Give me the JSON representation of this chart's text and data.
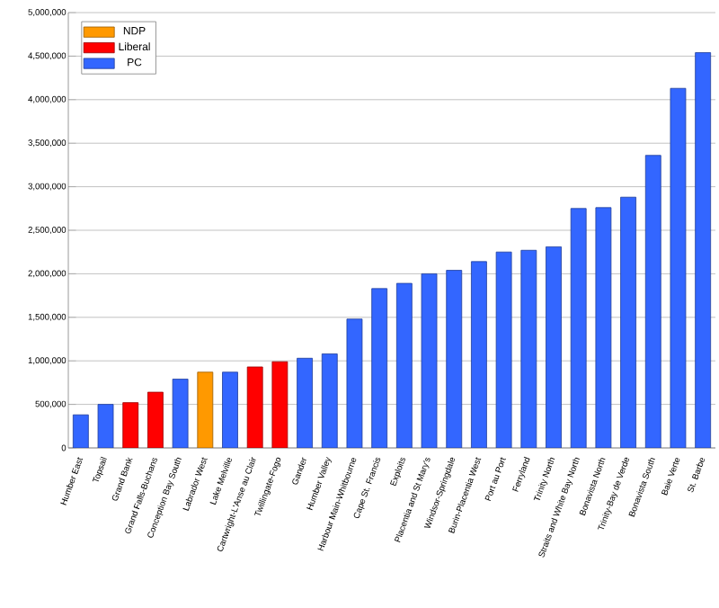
{
  "chart_data": {
    "type": "bar",
    "categories": [
      "Humber East",
      "Topsail",
      "Grand Bank",
      "Grand Falls-Buchans",
      "Conception Bay South",
      "Labrador West",
      "Lake Melville",
      "Cartwright-L'Anse au Clair",
      "Twillingate-Fogo",
      "Gander",
      "Humber Valley",
      "Harbour Main-Whitbourne",
      "Cape St. Francis",
      "Exploits",
      "Placentia and St Mary's",
      "Windsor-Springdale",
      "Burin-Placentia West",
      "Port au Port",
      "Ferryland",
      "Trinity North",
      "Straits and White Bay North",
      "Bonavista North",
      "Trinity-Bay de Verde",
      "Bonavista South",
      "Baie Verte",
      "St. Barbe"
    ],
    "series": [
      {
        "name": "NDP",
        "color": "#ff9900",
        "values": [
          null,
          null,
          null,
          null,
          null,
          870000,
          null,
          null,
          null,
          null,
          null,
          null,
          null,
          null,
          null,
          null,
          null,
          null,
          null,
          null,
          null,
          null,
          null,
          null,
          null,
          null
        ]
      },
      {
        "name": "Liberal",
        "color": "#ff0000",
        "values": [
          null,
          null,
          520000,
          640000,
          null,
          null,
          null,
          930000,
          990000,
          null,
          null,
          null,
          null,
          null,
          null,
          null,
          null,
          null,
          null,
          null,
          null,
          null,
          null,
          null,
          null,
          null
        ]
      },
      {
        "name": "PC",
        "color": "#3366ff",
        "values": [
          380000,
          500000,
          null,
          null,
          790000,
          null,
          870000,
          null,
          null,
          1030000,
          1080000,
          1480000,
          1830000,
          1890000,
          2000000,
          2040000,
          2140000,
          2250000,
          2270000,
          2310000,
          2750000,
          2760000,
          2880000,
          3360000,
          4130000,
          4540000
        ]
      }
    ],
    "ylim": [
      0,
      5000000
    ],
    "yticks": [
      0,
      {
        "value": 500000,
        "label": "500,000"
      },
      {
        "value": 1000000,
        "label": "1,000,000"
      },
      {
        "value": 1500000,
        "label": "1,500,000"
      },
      {
        "value": 2000000,
        "label": "2,000,000"
      },
      {
        "value": 2500000,
        "label": "2,500,000"
      },
      {
        "value": 3000000,
        "label": "3,000,000"
      },
      {
        "value": 3500000,
        "label": "3,500,000"
      },
      {
        "value": 4000000,
        "label": "4,000,000"
      },
      {
        "value": 4500000,
        "label": "4,500,000"
      },
      {
        "value": 5000000,
        "label": "5,000,000"
      }
    ],
    "grid": "y",
    "legend": "top left"
  }
}
